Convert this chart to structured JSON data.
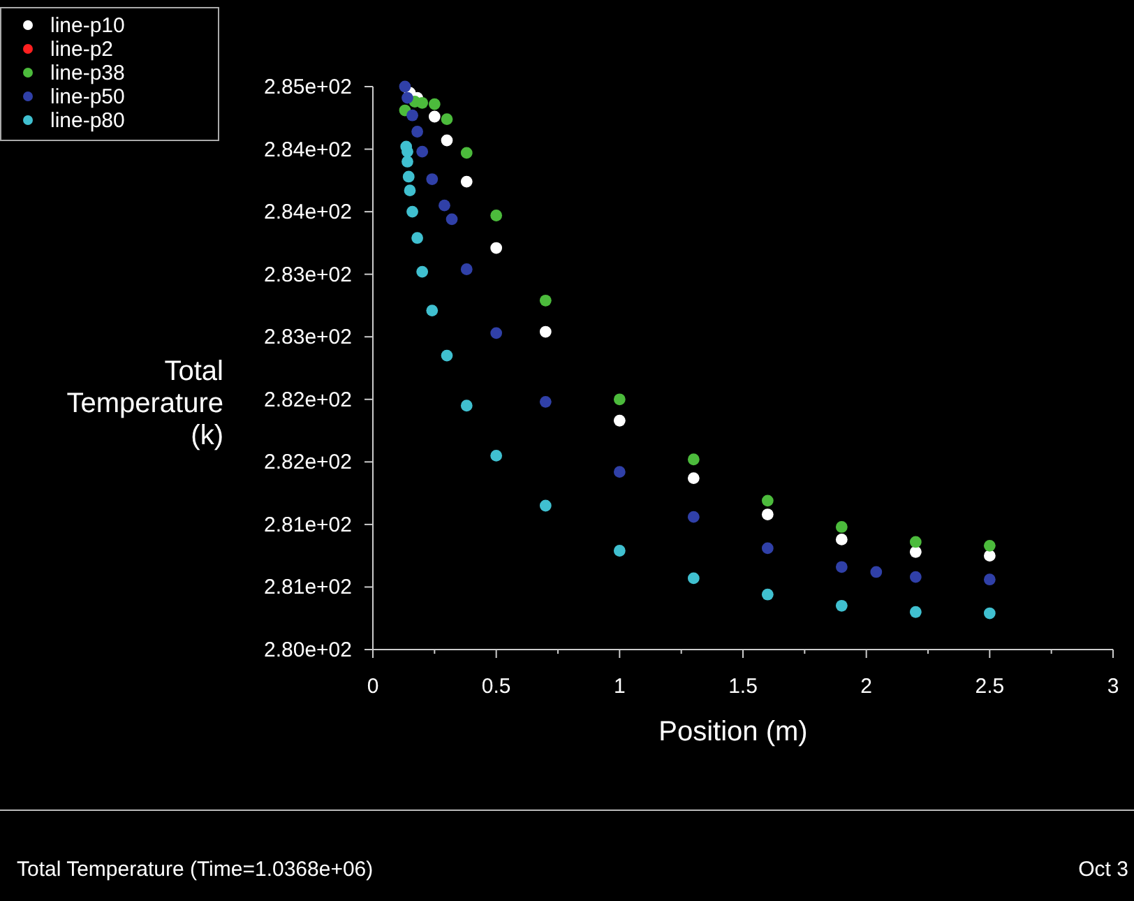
{
  "chart_data": {
    "type": "scatter",
    "xlabel": "Position (m)",
    "ylabel": "Total\nTemperature\n(k)",
    "xlim": [
      0,
      3
    ],
    "ylim": [
      280,
      284.5
    ],
    "xticks": [
      0,
      {
        "value": 0.25,
        "label": null
      },
      0.5,
      {
        "value": 0.75,
        "label": null
      },
      1,
      {
        "value": 1.25,
        "label": null
      },
      1.5,
      {
        "value": 1.75,
        "label": null
      },
      2,
      {
        "value": 2.25,
        "label": null
      },
      2.5,
      {
        "value": 2.75,
        "label": null
      },
      3
    ],
    "yticks": [
      {
        "value": 280,
        "label": "2.80e+02"
      },
      {
        "value": 280.5,
        "label": "2.81e+02"
      },
      {
        "value": 281,
        "label": "2.81e+02"
      },
      {
        "value": 281.5,
        "label": "2.82e+02"
      },
      {
        "value": 282,
        "label": "2.82e+02"
      },
      {
        "value": 282.5,
        "label": "2.83e+02"
      },
      {
        "value": 283,
        "label": "2.83e+02"
      },
      {
        "value": 283.5,
        "label": "2.84e+02"
      },
      {
        "value": 284,
        "label": "2.84e+02"
      },
      {
        "value": 284.5,
        "label": "2.85e+02"
      }
    ],
    "grid": false,
    "legend": "top left",
    "marker": "circle",
    "annotations": [
      "Total Temperature  (Time=1.0368e+06)",
      "Oct 3"
    ],
    "series": [
      {
        "name": "line-p10",
        "color": "#ffffff",
        "x": [
          0.15,
          0.18,
          0.25,
          0.3,
          0.38,
          0.5,
          0.7,
          1.0,
          1.3,
          1.6,
          1.9,
          2.2,
          2.5
        ],
        "values": [
          284.45,
          284.41,
          284.26,
          284.07,
          283.74,
          283.21,
          282.54,
          281.83,
          281.37,
          281.08,
          280.88,
          280.78,
          280.75
        ]
      },
      {
        "name": "line-p2",
        "color": "#ff2020"
      },
      {
        "name": "line-p38",
        "color": "#4cbb3c",
        "x": [
          0.13,
          0.17,
          0.2,
          0.25,
          0.3,
          0.38,
          0.5,
          0.7,
          1.0,
          1.3,
          1.6,
          1.9,
          2.2,
          2.5
        ],
        "values": [
          284.31,
          284.38,
          284.37,
          284.36,
          284.24,
          283.97,
          283.47,
          282.79,
          282.0,
          281.52,
          281.19,
          280.98,
          280.86,
          280.83
        ]
      },
      {
        "name": "line-p50",
        "color": "#3040a8",
        "x": [
          0.13,
          0.14,
          0.16,
          0.18,
          0.2,
          0.24,
          0.29,
          0.32,
          0.38,
          0.5,
          0.7,
          1.0,
          1.3,
          1.6,
          1.9,
          2.04,
          2.2,
          2.5
        ],
        "values": [
          284.5,
          284.41,
          284.27,
          284.14,
          283.98,
          283.76,
          283.55,
          283.44,
          283.04,
          282.53,
          281.98,
          281.42,
          281.06,
          280.81,
          280.66,
          280.62,
          280.58,
          280.56
        ]
      },
      {
        "name": "line-p80",
        "color": "#40c0d0",
        "x": [
          0.135,
          0.14,
          0.14,
          0.145,
          0.15,
          0.16,
          0.18,
          0.2,
          0.24,
          0.3,
          0.38,
          0.5,
          0.7,
          1.0,
          1.3,
          1.6,
          1.9,
          2.2,
          2.5
        ],
        "values": [
          284.02,
          283.98,
          283.9,
          283.78,
          283.67,
          283.5,
          283.29,
          283.02,
          282.71,
          282.35,
          281.95,
          281.55,
          281.15,
          280.79,
          280.57,
          280.44,
          280.35,
          280.3,
          280.29
        ]
      }
    ]
  }
}
